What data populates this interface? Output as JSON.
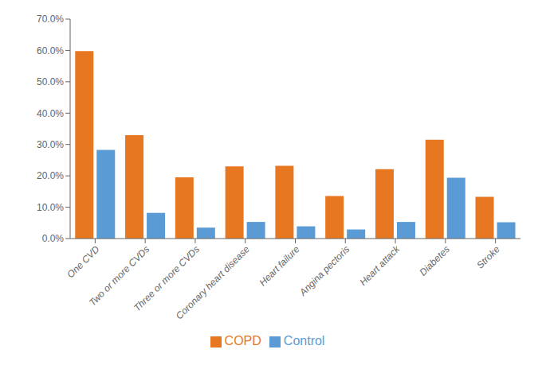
{
  "chart_data": {
    "type": "bar",
    "categories": [
      "One CVD",
      "Two or more CVDs",
      "Three or more CVDs",
      "Coronary heart disease",
      "Heart failure",
      "Angina pectoris",
      "Heart attack",
      "Diabetes",
      "Stroke"
    ],
    "series": [
      {
        "name": "COPD",
        "color": "#E87722",
        "values": [
          59.8,
          33.0,
          19.5,
          23.0,
          23.2,
          13.6,
          22.1,
          31.5,
          13.3
        ]
      },
      {
        "name": "Control",
        "color": "#5B9BD5",
        "values": [
          28.3,
          8.2,
          3.5,
          5.3,
          3.9,
          2.9,
          5.3,
          19.4,
          5.2
        ]
      }
    ],
    "ylim": [
      0,
      70
    ],
    "yticks": [
      {
        "value": 0,
        "label": "0.0%"
      },
      {
        "value": 10,
        "label": "10.0%"
      },
      {
        "value": 20,
        "label": "20.0%"
      },
      {
        "value": 30,
        "label": "30.0%"
      },
      {
        "value": 40,
        "label": "40.0%"
      },
      {
        "value": 50,
        "label": "50.0%"
      },
      {
        "value": 60,
        "label": "60.0%"
      },
      {
        "value": 70,
        "label": "70.0%"
      }
    ],
    "grid": false,
    "legend": "bottom"
  }
}
